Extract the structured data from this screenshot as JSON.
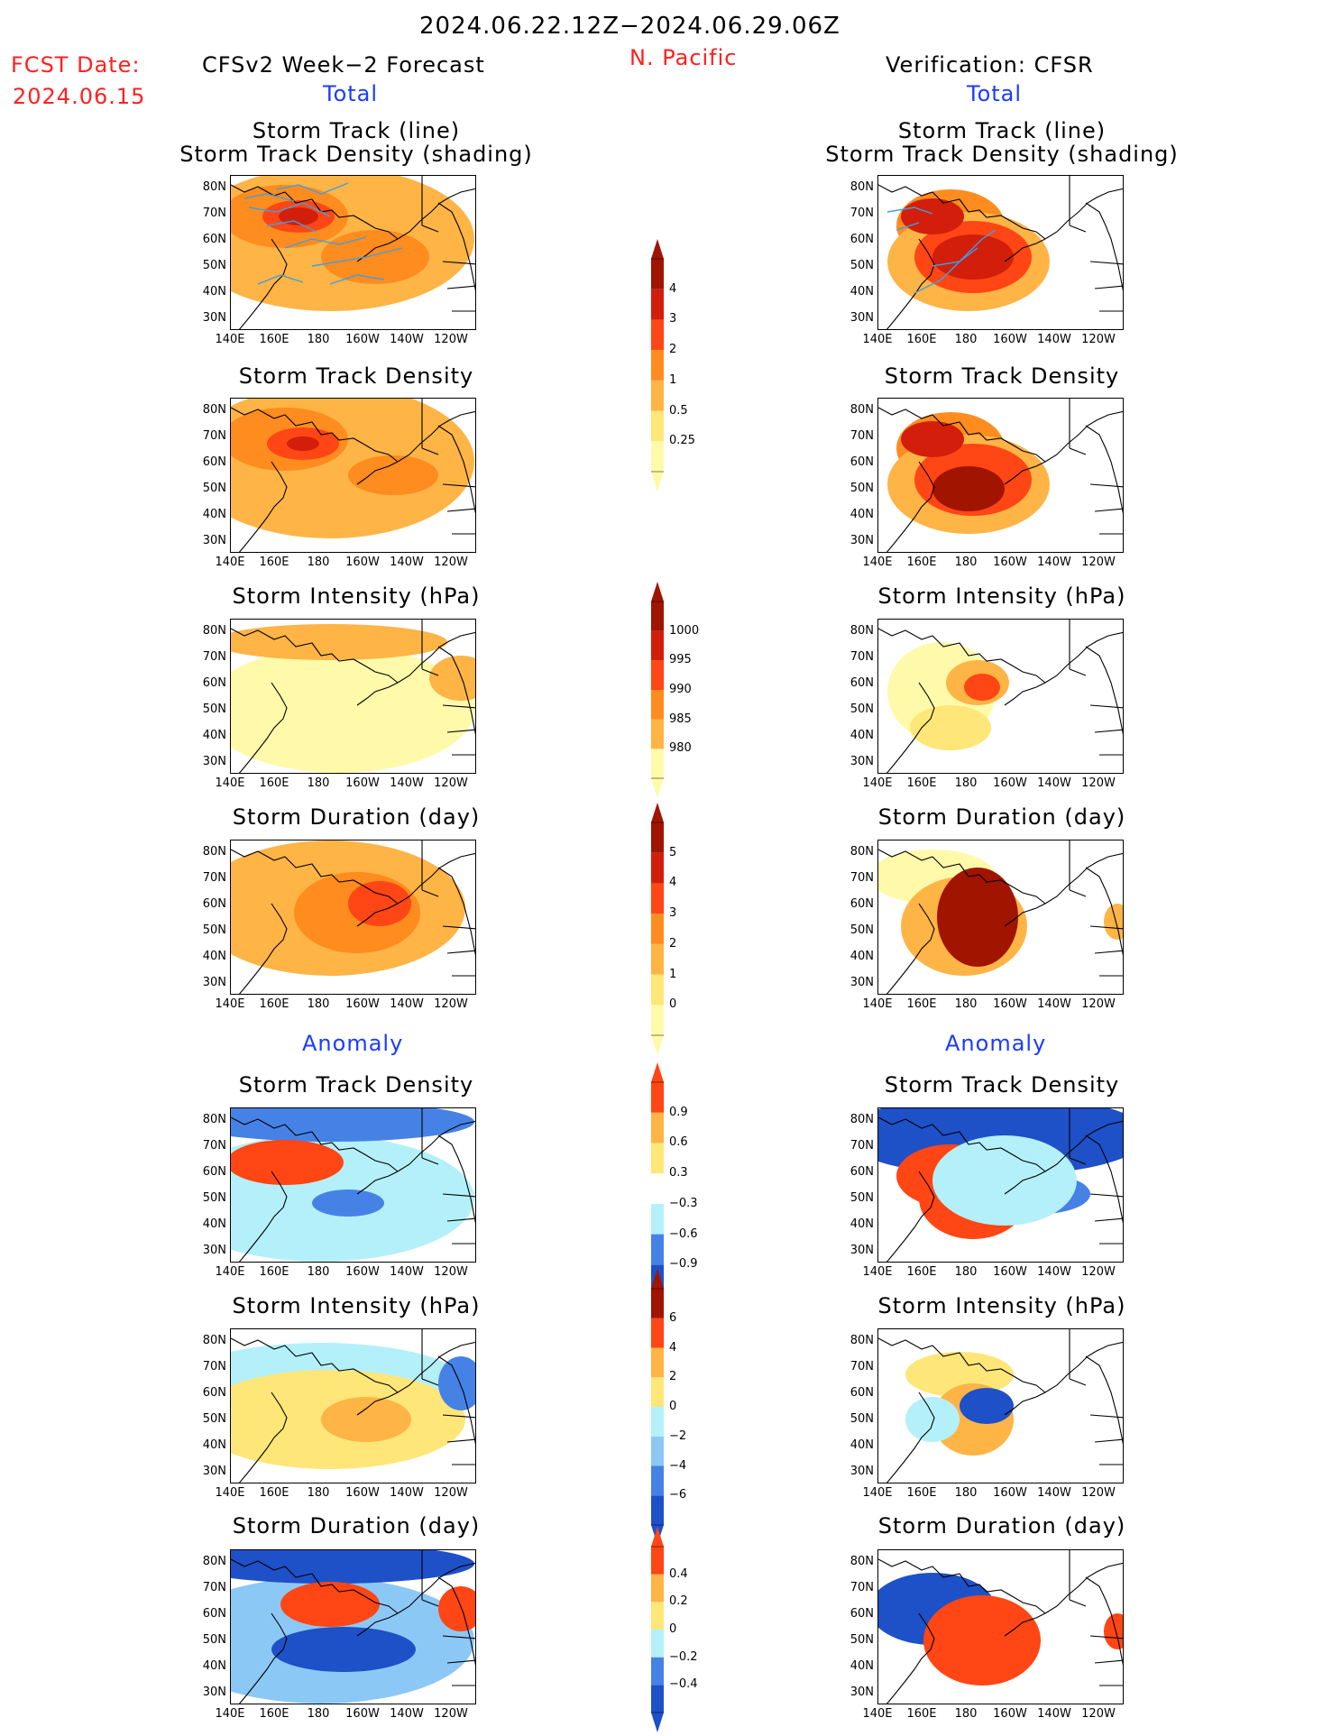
{
  "header": {
    "period": "2024.06.22.12Z−2024.06.29.06Z",
    "region": "N. Pacific",
    "fcst_label": "FCST Date:",
    "fcst_date": "2024.06.15",
    "left_title": "CFSv2 Week−2 Forecast",
    "right_title": "Verification: CFSR",
    "total_label": "Total",
    "anomaly_label": "Anomaly"
  },
  "axes": {
    "lat_ticks": [
      "80N",
      "70N",
      "60N",
      "50N",
      "40N",
      "30N"
    ],
    "lon_ticks": [
      "140E",
      "160E",
      "180",
      "160W",
      "140W",
      "120W"
    ]
  },
  "panels": {
    "track": [
      "Storm Track (line)",
      "Storm Track Density (shading)"
    ],
    "density": "Storm Track Density",
    "intensity": "Storm Intensity (hPa)",
    "duration": "Storm Duration (day)"
  },
  "colorbars": [
    {
      "name": "density-total",
      "labels": [
        "4",
        "3",
        "2",
        "1",
        "0.5",
        "0.25"
      ]
    },
    {
      "name": "intensity-total",
      "labels": [
        "1000",
        "995",
        "990",
        "985",
        "980"
      ]
    },
    {
      "name": "duration-total",
      "labels": [
        "5",
        "4",
        "3",
        "2",
        "1",
        "0"
      ]
    },
    {
      "name": "density-anomaly",
      "labels": [
        "0.9",
        "0.6",
        "0.3",
        "−0.3",
        "−0.6",
        "−0.9"
      ]
    },
    {
      "name": "intensity-anomaly",
      "labels": [
        "6",
        "4",
        "2",
        "0",
        "−2",
        "−4",
        "−6"
      ]
    },
    {
      "name": "duration-anomaly",
      "labels": [
        "0.4",
        "0.2",
        "0",
        "−0.2",
        "−0.4"
      ]
    }
  ],
  "colors": {
    "warm": [
      "#fffaaa",
      "#ffe678",
      "#ffb446",
      "#ff8c1e",
      "#ff4614",
      "#d21e0a",
      "#a01400"
    ],
    "cool": [
      "#b4f0fa",
      "#8cc8f5",
      "#4682e6",
      "#1e50c8"
    ],
    "track_line": "#3ca0e6"
  }
}
